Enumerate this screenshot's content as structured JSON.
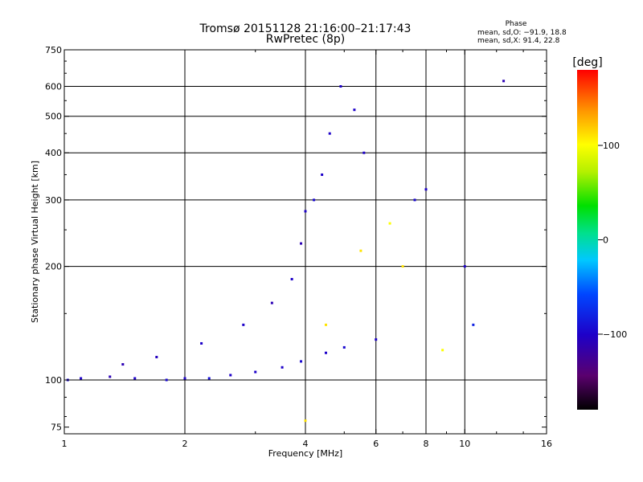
{
  "chart_data": {
    "type": "scatter",
    "title": "Tromsø 20151128 21:16:00–21:17:43",
    "subtitle": "RwPretec (8p)",
    "xlabel": "Frequency [MHz]",
    "ylabel": "Stationary phase Virtual Height [km]",
    "x_scale": "log",
    "y_scale": "log",
    "xlim": [
      1,
      16
    ],
    "ylim": [
      72,
      750
    ],
    "x_ticks": [
      1,
      2,
      4,
      6,
      8,
      10,
      16
    ],
    "x_tick_labels": [
      "1",
      "2",
      "4",
      "6",
      "8",
      "10",
      "16"
    ],
    "x_grid": [
      2,
      4,
      6,
      8,
      10
    ],
    "y_ticks": [
      75,
      100,
      200,
      300,
      400,
      500,
      600,
      750
    ],
    "y_tick_labels": [
      "75",
      "100",
      "200",
      "300",
      "400",
      "500",
      "600",
      "750"
    ],
    "y_grid": [
      100,
      200,
      300,
      400,
      500,
      600
    ],
    "grid": true,
    "stats": {
      "heading": "Phase",
      "line_o": "mean, sd,O: −91.9, 18.8",
      "line_x": "mean, sd,X:  91.4, 22.8"
    },
    "colorbar": {
      "unit": "[deg]",
      "min": -180,
      "max": 180,
      "ticks": [
        100,
        0,
        -100
      ],
      "tick_labels": [
        "100",
        "0",
        "−100"
      ]
    },
    "series": [
      {
        "points": [
          {
            "x": 1.02,
            "y": 100,
            "phase": -95
          },
          {
            "x": 1.1,
            "y": 101,
            "phase": -100
          },
          {
            "x": 1.3,
            "y": 102,
            "phase": -110
          },
          {
            "x": 1.5,
            "y": 101,
            "phase": -100
          },
          {
            "x": 1.8,
            "y": 100,
            "phase": -95
          },
          {
            "x": 2.0,
            "y": 101,
            "phase": -100
          },
          {
            "x": 2.3,
            "y": 101,
            "phase": -90
          },
          {
            "x": 2.6,
            "y": 103,
            "phase": -100
          },
          {
            "x": 3.0,
            "y": 105,
            "phase": -100
          },
          {
            "x": 3.5,
            "y": 108,
            "phase": -100
          },
          {
            "x": 3.9,
            "y": 112,
            "phase": -95
          },
          {
            "x": 4.5,
            "y": 118,
            "phase": -100
          },
          {
            "x": 5.0,
            "y": 122,
            "phase": -95
          },
          {
            "x": 6.0,
            "y": 128,
            "phase": -100
          },
          {
            "x": 1.4,
            "y": 110,
            "phase": -110
          },
          {
            "x": 1.7,
            "y": 115,
            "phase": -105
          },
          {
            "x": 2.2,
            "y": 125,
            "phase": -100
          },
          {
            "x": 2.8,
            "y": 140,
            "phase": -100
          },
          {
            "x": 3.3,
            "y": 160,
            "phase": -110
          },
          {
            "x": 3.7,
            "y": 185,
            "phase": -100
          },
          {
            "x": 3.9,
            "y": 230,
            "phase": -110
          },
          {
            "x": 4.0,
            "y": 280,
            "phase": -100
          },
          {
            "x": 4.2,
            "y": 300,
            "phase": -95
          },
          {
            "x": 4.4,
            "y": 350,
            "phase": -100
          },
          {
            "x": 4.6,
            "y": 450,
            "phase": -100
          },
          {
            "x": 4.9,
            "y": 600,
            "phase": -100
          },
          {
            "x": 5.3,
            "y": 520,
            "phase": -100
          },
          {
            "x": 5.6,
            "y": 400,
            "phase": -100
          },
          {
            "x": 7.5,
            "y": 300,
            "phase": -95
          },
          {
            "x": 8.0,
            "y": 320,
            "phase": -100
          },
          {
            "x": 10.0,
            "y": 200,
            "phase": -100
          },
          {
            "x": 10.5,
            "y": 140,
            "phase": -80
          },
          {
            "x": 4.5,
            "y": 140,
            "phase": 110
          },
          {
            "x": 5.5,
            "y": 220,
            "phase": 110
          },
          {
            "x": 6.5,
            "y": 260,
            "phase": 100
          },
          {
            "x": 7.0,
            "y": 200,
            "phase": 110
          },
          {
            "x": 8.8,
            "y": 120,
            "phase": 100
          },
          {
            "x": 4.0,
            "y": 78,
            "phase": 110
          },
          {
            "x": 12.5,
            "y": 620,
            "phase": -110
          }
        ]
      }
    ]
  }
}
